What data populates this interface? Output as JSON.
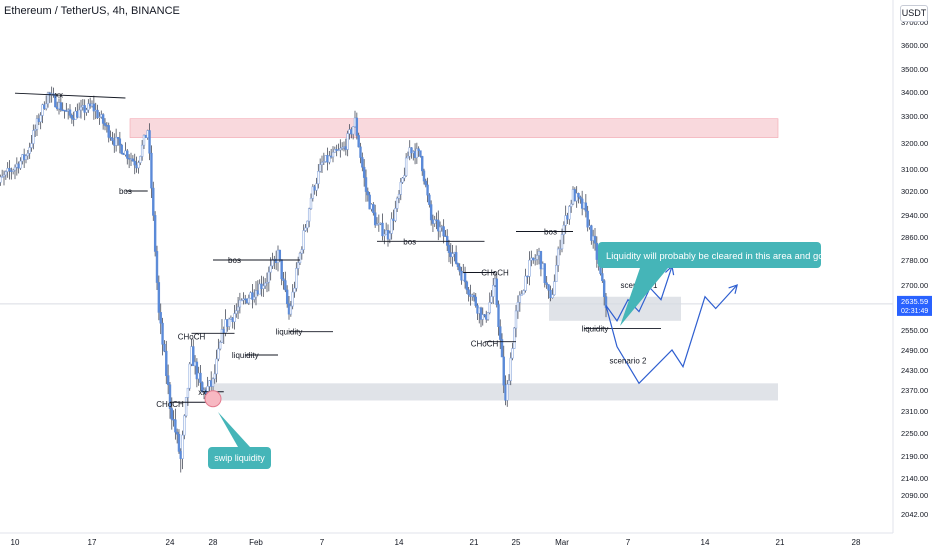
{
  "header": {
    "title": "Ethereum / TetherUS, 4h, BINANCE",
    "currency": "USDT"
  },
  "price_tag": {
    "price": "2635.59",
    "countdown": "02:31:49",
    "color": "#2962ff"
  },
  "colors": {
    "candle": "#5b8ad8",
    "wick": "#4a4f5c",
    "resistance_zone": "#f7c9cf",
    "support_zone": "#d6d9e0",
    "annotation": "#45b5b8",
    "scenario_line": "#2f5fd0",
    "swip_circle": "#f7b8c2"
  },
  "chart_data": {
    "type": "candlestick",
    "symbol": "Ethereum / TetherUS",
    "interval": "4h",
    "exchange": "BINANCE",
    "y_axis_ticks": [
      3700,
      3600,
      3500,
      3400,
      3300,
      3200,
      3100,
      3020,
      2940,
      2860,
      2780,
      2700,
      2625,
      2550,
      2490,
      2430,
      2370,
      2310,
      2250,
      2190,
      2140,
      2090,
      2042
    ],
    "y_axis_tick_labels": [
      "3700.00",
      "3600.00",
      "3500.00",
      "3400.00",
      "3300.00",
      "3200.00",
      "3100.00",
      "3020.00",
      "2940.00",
      "2860.00",
      "2780.00",
      "2700.00",
      "2625.00",
      "2550.00",
      "2490.00",
      "2430.00",
      "2370.00",
      "2310.00",
      "2250.00",
      "2190.00",
      "2140.00",
      "2090.00",
      "2042.00"
    ],
    "x_axis_labels": [
      "10",
      "17",
      "24",
      "28",
      "Feb",
      "7",
      "14",
      "21",
      "25",
      "Mar",
      "7",
      "14",
      "21",
      "28"
    ],
    "last_price": 2635.59,
    "price_path": [
      {
        "date": "Jan 8",
        "price": 3030
      },
      {
        "date": "Jan 11",
        "price": 3150
      },
      {
        "date": "Jan 13",
        "price": 3390
      },
      {
        "date": "Jan 15",
        "price": 3300
      },
      {
        "date": "Jan 17",
        "price": 3340
      },
      {
        "date": "Jan 19",
        "price": 3210
      },
      {
        "date": "Jan 21",
        "price": 3120
      },
      {
        "date": "Jan 22",
        "price": 3250
      },
      {
        "date": "Jan 23",
        "price": 2600
      },
      {
        "date": "Jan 24",
        "price": 2330
      },
      {
        "date": "Jan 25",
        "price": 2180
      },
      {
        "date": "Jan 26",
        "price": 2480
      },
      {
        "date": "Jan 27",
        "price": 2360
      },
      {
        "date": "Jan 28",
        "price": 2390
      },
      {
        "date": "Jan 29",
        "price": 2560
      },
      {
        "date": "Jan 31",
        "price": 2650
      },
      {
        "date": "Feb 2",
        "price": 2720
      },
      {
        "date": "Feb 3",
        "price": 2800
      },
      {
        "date": "Feb 4",
        "price": 2600
      },
      {
        "date": "Feb 6",
        "price": 3000
      },
      {
        "date": "Feb 7",
        "price": 3120
      },
      {
        "date": "Feb 9",
        "price": 3180
      },
      {
        "date": "Feb 10",
        "price": 3280
      },
      {
        "date": "Feb 11",
        "price": 3020
      },
      {
        "date": "Feb 12",
        "price": 2900
      },
      {
        "date": "Feb 13",
        "price": 2870
      },
      {
        "date": "Feb 14",
        "price": 3000
      },
      {
        "date": "Feb 15",
        "price": 3180
      },
      {
        "date": "Feb 16",
        "price": 3150
      },
      {
        "date": "Feb 17",
        "price": 2920
      },
      {
        "date": "Feb 18",
        "price": 2880
      },
      {
        "date": "Feb 19",
        "price": 2800
      },
      {
        "date": "Feb 21",
        "price": 2650
      },
      {
        "date": "Feb 22",
        "price": 2580
      },
      {
        "date": "Feb 23",
        "price": 2700
      },
      {
        "date": "Feb 24",
        "price": 2330
      },
      {
        "date": "Feb 25",
        "price": 2600
      },
      {
        "date": "Feb 26",
        "price": 2750
      },
      {
        "date": "Feb 27",
        "price": 2800
      },
      {
        "date": "Feb 28",
        "price": 2640
      },
      {
        "date": "Mar 1",
        "price": 2880
      },
      {
        "date": "Mar 2",
        "price": 3010
      },
      {
        "date": "Mar 3",
        "price": 2960
      },
      {
        "date": "Mar 4",
        "price": 2820
      },
      {
        "date": "Mar 5",
        "price": 2635
      }
    ],
    "zones": [
      {
        "label": "resistance",
        "from": 3220,
        "to": 3290
      },
      {
        "label": "support",
        "from": 2340,
        "to": 2390
      },
      {
        "label": "liquidity box",
        "from": 2580,
        "to": 2660
      }
    ],
    "scenario_1": [
      {
        "date": "Mar 5",
        "price": 2630
      },
      {
        "date": "Mar 6",
        "price": 2580
      },
      {
        "date": "Mar 7",
        "price": 2650
      },
      {
        "date": "Mar 8",
        "price": 2610
      },
      {
        "date": "Mar 9",
        "price": 2690
      },
      {
        "date": "Mar 10",
        "price": 2650
      },
      {
        "date": "Mar 11",
        "price": 2760
      }
    ],
    "scenario_2": [
      {
        "date": "Mar 5",
        "price": 2630
      },
      {
        "date": "Mar 6",
        "price": 2500
      },
      {
        "date": "Mar 8",
        "price": 2390
      },
      {
        "date": "Mar 11",
        "price": 2490
      },
      {
        "date": "Mar 12",
        "price": 2440
      },
      {
        "date": "Mar 14",
        "price": 2660
      },
      {
        "date": "Mar 15",
        "price": 2620
      },
      {
        "date": "Mar 17",
        "price": 2700
      }
    ],
    "labels": [
      {
        "text": "xx",
        "date": "Jan 14",
        "price": 3390
      },
      {
        "text": "bos",
        "date": "Jan 20",
        "price": 3020
      },
      {
        "text": "CHoCH",
        "date": "Jan 26",
        "price": 2530
      },
      {
        "text": "CHoCH",
        "date": "Jan 24",
        "price": 2330
      },
      {
        "text": "xx",
        "date": "Jan 27",
        "price": 2365
      },
      {
        "text": "bos",
        "date": "Jan 30",
        "price": 2780
      },
      {
        "text": "liquidity",
        "date": "Jan 31",
        "price": 2475
      },
      {
        "text": "liquidity",
        "date": "Feb 4",
        "price": 2545
      },
      {
        "text": "bos",
        "date": "Feb 15",
        "price": 2845
      },
      {
        "text": "CHoCH",
        "date": "Feb 23",
        "price": 2740
      },
      {
        "text": "CHoCH",
        "date": "Feb 22",
        "price": 2510
      },
      {
        "text": "bos",
        "date": "Feb 28",
        "price": 2880
      },
      {
        "text": "liquidity",
        "date": "Mar 4",
        "price": 2555
      },
      {
        "text": "scenario 1",
        "date": "Mar 8",
        "price": 2690
      },
      {
        "text": "scenario 2",
        "date": "Mar 7",
        "price": 2450
      }
    ],
    "annotations": [
      {
        "text": "Liquidity will probably be cleared in this area and go up."
      },
      {
        "text": "swip liquidity"
      }
    ]
  }
}
